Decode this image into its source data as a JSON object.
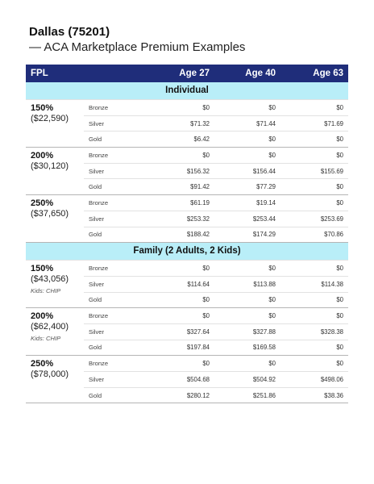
{
  "header": {
    "title": "Dallas (75201)",
    "subtitle": "— ACA Marketplace Premium Examples"
  },
  "table": {
    "columns": [
      "FPL",
      "",
      "Age 27",
      "Age 40",
      "Age 63"
    ],
    "sections": [
      {
        "label": "Individual",
        "groups": [
          {
            "fpl_pct": "150%",
            "fpl_income": "($22,590)",
            "note": "",
            "rows": [
              {
                "metal": "Bronze",
                "values": [
                  "$0",
                  "$0",
                  "$0"
                ]
              },
              {
                "metal": "Silver",
                "values": [
                  "$71.32",
                  "$71.44",
                  "$71.69"
                ]
              },
              {
                "metal": "Gold",
                "values": [
                  "$6.42",
                  "$0",
                  "$0"
                ]
              }
            ]
          },
          {
            "fpl_pct": "200%",
            "fpl_income": "($30,120)",
            "note": "",
            "rows": [
              {
                "metal": "Bronze",
                "values": [
                  "$0",
                  "$0",
                  "$0"
                ]
              },
              {
                "metal": "Silver",
                "values": [
                  "$156.32",
                  "$156.44",
                  "$155.69"
                ]
              },
              {
                "metal": "Gold",
                "values": [
                  "$91.42",
                  "$77.29",
                  "$0"
                ]
              }
            ]
          },
          {
            "fpl_pct": "250%",
            "fpl_income": "($37,650)",
            "note": "",
            "rows": [
              {
                "metal": "Bronze",
                "values": [
                  "$61.19",
                  "$19.14",
                  "$0"
                ]
              },
              {
                "metal": "Silver",
                "values": [
                  "$253.32",
                  "$253.44",
                  "$253.69"
                ]
              },
              {
                "metal": "Gold",
                "values": [
                  "$188.42",
                  "$174.29",
                  "$70.86"
                ]
              }
            ]
          }
        ]
      },
      {
        "label": "Family (2 Adults, 2 Kids)",
        "groups": [
          {
            "fpl_pct": "150%",
            "fpl_income": "($43,056)",
            "note": "Kids: CHIP",
            "rows": [
              {
                "metal": "Bronze",
                "values": [
                  "$0",
                  "$0",
                  "$0"
                ]
              },
              {
                "metal": "Silver",
                "values": [
                  "$114.64",
                  "$113.88",
                  "$114.38"
                ]
              },
              {
                "metal": "Gold",
                "values": [
                  "$0",
                  "$0",
                  "$0"
                ]
              }
            ]
          },
          {
            "fpl_pct": "200%",
            "fpl_income": "($62,400)",
            "note": "Kids: CHIP",
            "rows": [
              {
                "metal": "Bronze",
                "values": [
                  "$0",
                  "$0",
                  "$0"
                ]
              },
              {
                "metal": "Silver",
                "values": [
                  "$327.64",
                  "$327.88",
                  "$328.38"
                ]
              },
              {
                "metal": "Gold",
                "values": [
                  "$197.84",
                  "$169.58",
                  "$0"
                ]
              }
            ]
          },
          {
            "fpl_pct": "250%",
            "fpl_income": "($78,000)",
            "note": "",
            "rows": [
              {
                "metal": "Bronze",
                "values": [
                  "$0",
                  "$0",
                  "$0"
                ]
              },
              {
                "metal": "Silver",
                "values": [
                  "$504.68",
                  "$504.92",
                  "$498.06"
                ]
              },
              {
                "metal": "Gold",
                "values": [
                  "$280.12",
                  "$251.86",
                  "$38.36"
                ]
              }
            ]
          }
        ]
      }
    ]
  },
  "colors": {
    "header_bg": "#1f2d7a",
    "section_bg": "#b9eef8"
  }
}
